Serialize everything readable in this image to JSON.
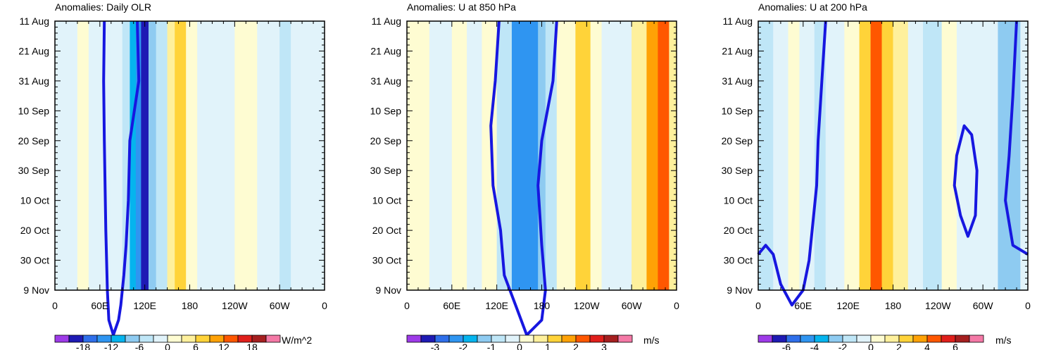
{
  "chart_data": [
    {
      "type": "heatmap",
      "title": "Anomalies: Daily OLR",
      "units": "W/m^2",
      "y_tick_labels": [
        "11 Aug",
        "21 Aug",
        "31 Aug",
        "10 Sep",
        "20 Sep",
        "30 Sep",
        "10 Oct",
        "20 Oct",
        "30 Oct",
        "9 Nov"
      ],
      "x_tick_labels": [
        "0",
        "60E",
        "120E",
        "180",
        "120W",
        "60W",
        "0"
      ],
      "colorbar_labels": [
        "-18",
        "-12",
        "-6",
        "0",
        "6",
        "12",
        "18"
      ],
      "levels": [
        -21,
        -18,
        -15,
        -12,
        -9,
        -6,
        -3,
        0,
        3,
        6,
        9,
        12,
        15,
        18,
        21
      ],
      "bands": [
        [
          0,
          15,
          -1
        ],
        [
          15,
          30,
          -0.5
        ],
        [
          30,
          45,
          0.5
        ],
        [
          45,
          60,
          -0.5
        ],
        [
          60,
          75,
          -1.5
        ],
        [
          75,
          90,
          -2
        ],
        [
          90,
          100,
          -6
        ],
        [
          100,
          108,
          -12
        ],
        [
          108,
          115,
          -15
        ],
        [
          115,
          125,
          -19
        ],
        [
          125,
          135,
          -9
        ],
        [
          135,
          150,
          -4
        ],
        [
          150,
          160,
          5
        ],
        [
          160,
          175,
          7
        ],
        [
          175,
          190,
          2.5
        ],
        [
          190,
          210,
          -1
        ],
        [
          210,
          240,
          -0.5
        ],
        [
          240,
          270,
          0.5
        ],
        [
          270,
          300,
          -1.5
        ],
        [
          300,
          315,
          -4
        ],
        [
          315,
          330,
          -1.5
        ],
        [
          330,
          360,
          -0.5
        ]
      ],
      "contour_lon": [
        [
          110,
          0
        ],
        [
          112,
          20
        ],
        [
          100,
          40
        ],
        [
          98,
          60
        ],
        [
          95,
          75
        ],
        [
          92,
          85
        ],
        [
          88,
          95
        ],
        [
          85,
          100
        ],
        [
          78,
          105
        ],
        [
          72,
          100
        ],
        [
          70,
          90
        ],
        [
          68,
          70
        ],
        [
          66,
          40
        ],
        [
          65,
          20
        ],
        [
          66,
          0
        ]
      ]
    },
    {
      "type": "heatmap",
      "title": "Anomalies: U at 850 hPa",
      "units": "m/s",
      "y_tick_labels": [
        "11 Aug",
        "21 Aug",
        "31 Aug",
        "10 Sep",
        "20 Sep",
        "30 Sep",
        "10 Oct",
        "20 Oct",
        "30 Oct",
        "9 Nov"
      ],
      "x_tick_labels": [
        "0",
        "60E",
        "120E",
        "180",
        "120W",
        "60W",
        "0"
      ],
      "colorbar_labels": [
        "-3",
        "-2",
        "-1",
        "0",
        "1",
        "2",
        "3"
      ],
      "levels": [
        -3.5,
        -3,
        -2.5,
        -2,
        -1.5,
        -1,
        -0.5,
        0,
        0.5,
        1,
        1.5,
        2,
        2.5,
        3,
        3.5
      ],
      "bands": [
        [
          0,
          10,
          0.4
        ],
        [
          10,
          30,
          0.2
        ],
        [
          30,
          60,
          -0.2
        ],
        [
          60,
          80,
          0.2
        ],
        [
          80,
          100,
          -0.4
        ],
        [
          100,
          120,
          0.3
        ],
        [
          120,
          140,
          -0.8
        ],
        [
          140,
          175,
          -2.2
        ],
        [
          175,
          185,
          -1.4
        ],
        [
          185,
          200,
          -0.6
        ],
        [
          200,
          225,
          0.2
        ],
        [
          225,
          245,
          1
        ],
        [
          245,
          260,
          0.3
        ],
        [
          260,
          300,
          -0.3
        ],
        [
          300,
          320,
          0.7
        ],
        [
          320,
          335,
          1.5
        ],
        [
          335,
          350,
          2.3
        ],
        [
          350,
          360,
          0.7
        ]
      ],
      "contour_lon": [
        [
          200,
          0
        ],
        [
          195,
          20
        ],
        [
          180,
          40
        ],
        [
          175,
          55
        ],
        [
          180,
          75
        ],
        [
          185,
          90
        ],
        [
          180,
          100
        ],
        [
          160,
          105
        ],
        [
          145,
          95
        ],
        [
          130,
          85
        ],
        [
          125,
          70
        ],
        [
          115,
          55
        ],
        [
          112,
          35
        ],
        [
          118,
          20
        ],
        [
          123,
          0
        ]
      ]
    },
    {
      "type": "heatmap",
      "title": "Anomalies: U at 200 hPa",
      "units": "m/s",
      "y_tick_labels": [
        "11 Aug",
        "21 Aug",
        "31 Aug",
        "10 Sep",
        "20 Sep",
        "30 Sep",
        "10 Oct",
        "20 Oct",
        "30 Oct",
        "9 Nov"
      ],
      "x_tick_labels": [
        "0",
        "60E",
        "120E",
        "180",
        "120W",
        "60W",
        "0"
      ],
      "colorbar_labels": [
        "-6",
        "-4",
        "-2",
        "0",
        "2",
        "4",
        "6"
      ],
      "levels": [
        -7,
        -6,
        -5,
        -4,
        -3,
        -2,
        -1,
        0,
        1,
        2,
        3,
        4,
        5,
        6,
        7
      ],
      "bands": [
        [
          0,
          20,
          -1.5
        ],
        [
          20,
          40,
          -0.5
        ],
        [
          40,
          55,
          0.5
        ],
        [
          55,
          75,
          -1
        ],
        [
          75,
          90,
          -1.5
        ],
        [
          90,
          115,
          -0.5
        ],
        [
          115,
          135,
          0.5
        ],
        [
          135,
          150,
          2.5
        ],
        [
          150,
          165,
          4
        ],
        [
          165,
          180,
          2.5
        ],
        [
          180,
          200,
          1
        ],
        [
          200,
          220,
          -0.5
        ],
        [
          220,
          245,
          -1.5
        ],
        [
          245,
          265,
          0.5
        ],
        [
          265,
          290,
          -0.5
        ],
        [
          290,
          320,
          -1
        ],
        [
          320,
          350,
          -3
        ],
        [
          350,
          360,
          -1
        ]
      ],
      "contour_lon": [
        [
          90,
          0
        ],
        [
          85,
          20
        ],
        [
          80,
          40
        ],
        [
          78,
          55
        ],
        [
          72,
          70
        ],
        [
          68,
          80
        ],
        [
          60,
          90
        ],
        [
          45,
          95
        ],
        [
          30,
          88
        ],
        [
          20,
          78
        ],
        [
          10,
          75
        ],
        [
          0,
          78
        ]
      ],
      "contour_loop": [
        [
          275,
          35
        ],
        [
          265,
          45
        ],
        [
          262,
          55
        ],
        [
          270,
          65
        ],
        [
          280,
          72
        ],
        [
          290,
          65
        ],
        [
          292,
          50
        ],
        [
          285,
          38
        ]
      ],
      "contour_right": [
        [
          345,
          0
        ],
        [
          340,
          25
        ],
        [
          335,
          45
        ],
        [
          330,
          60
        ],
        [
          340,
          75
        ],
        [
          360,
          78
        ]
      ]
    }
  ]
}
